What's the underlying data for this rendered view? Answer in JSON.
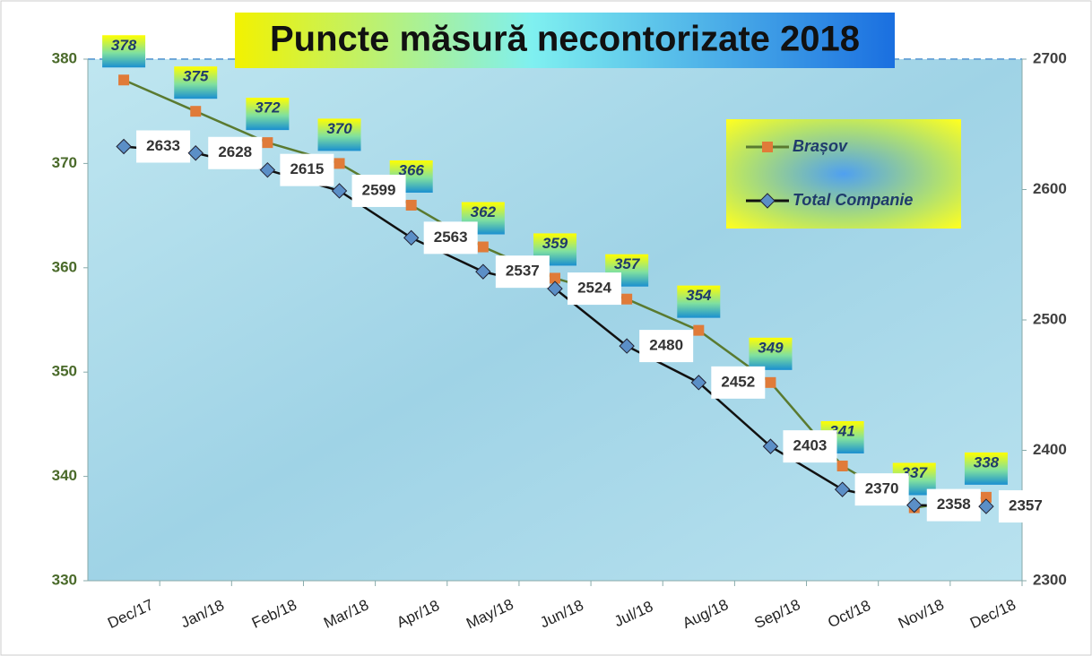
{
  "chart_data": {
    "type": "line",
    "title": "Puncte măsură necontorizate 2018",
    "categories": [
      "Dec/17",
      "Jan/18",
      "Feb/18",
      "Mar/18",
      "Apr/18",
      "May/18",
      "Jun/18",
      "Jul/18",
      "Aug/18",
      "Sep/18",
      "Oct/18",
      "Nov/18",
      "Dec/18"
    ],
    "series": [
      {
        "name": "Brașov",
        "color": "#5a7a30",
        "marker_color": "#e07b39",
        "values": [
          378,
          375,
          372,
          370,
          366,
          362,
          359,
          357,
          354,
          349,
          341,
          337,
          338
        ]
      },
      {
        "name": "Total Companie",
        "color": "#111111",
        "marker_color": "#5b8fc7",
        "axis": "y2",
        "values": [
          2633,
          2628,
          2615,
          2599,
          2563,
          2537,
          2524,
          2480,
          2452,
          2403,
          2370,
          2358,
          2357
        ]
      }
    ],
    "ylim": [
      330,
      380
    ],
    "yticks": [
      330,
      340,
      350,
      360,
      370,
      380
    ],
    "y2lim": [
      2300,
      2700
    ],
    "y2ticks": [
      2300,
      2400,
      2500,
      2600,
      2700
    ],
    "grid": false,
    "legend": "top-right"
  }
}
